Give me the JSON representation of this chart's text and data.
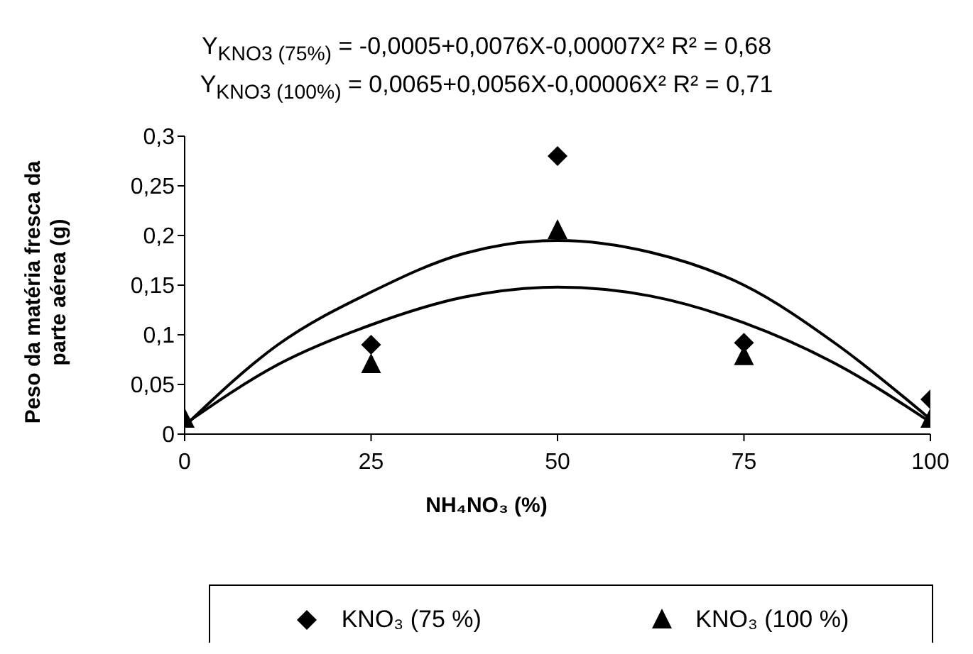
{
  "chart_data": {
    "type": "scatter",
    "title": "Y$_{KNO3 (75%)}$ = -0,0005+0,0076X-0,00007X²  R² = 0,68",
    "subtitle": "Y$_{KNO3 (100%)}$ = 0,0065+0,0056X-0,00006X²   R² = 0,71",
    "xlabel": "NH₄NO₃ (%)",
    "ylabel": "Peso da matéria fresca da parte aérea (g)",
    "x": [
      0,
      25,
      50,
      75,
      100
    ],
    "series": [
      {
        "name": "KNO₃ (75 %)",
        "color": "#000000",
        "marker": "diamond",
        "values": [
          null,
          0.09,
          0.28,
          0.092,
          0.035
        ]
      },
      {
        "name": "KNO₃ (100 %)",
        "color": "#000000",
        "marker": "triangle",
        "values": [
          0.015,
          0.07,
          0.205,
          0.078,
          0.015
        ]
      },
      {
        "type": "line",
        "color": "#000000",
        "marker": "none",
        "x": [
          0,
          12.5,
          25,
          37.5,
          50,
          62.5,
          75,
          87.5,
          100
        ],
        "values": [
          0.008,
          0.09,
          0.143,
          0.182,
          0.195,
          0.183,
          0.15,
          0.09,
          0.015
        ]
      },
      {
        "type": "line",
        "color": "#000000",
        "marker": "none",
        "x": [
          0,
          12.5,
          25,
          37.5,
          50,
          62.5,
          75,
          87.5,
          100
        ],
        "values": [
          0.01,
          0.07,
          0.11,
          0.138,
          0.148,
          0.139,
          0.112,
          0.07,
          0.012
        ]
      }
    ],
    "xlim": [
      0,
      100
    ],
    "xticks": [
      0,
      25,
      50,
      75,
      100
    ],
    "ylim": [
      0,
      0.3
    ],
    "yticks": [
      0,
      {
        "value": 0.05,
        "label": "0,05"
      },
      {
        "value": 0.1,
        "label": "0,1"
      },
      {
        "value": 0.15,
        "label": "0,15"
      },
      {
        "value": 0.2,
        "label": "0,2"
      },
      {
        "value": 0.25,
        "label": "0,25"
      },
      {
        "value": 0.3,
        "label": "0,3"
      }
    ],
    "grid": false,
    "legend": "bottom"
  }
}
